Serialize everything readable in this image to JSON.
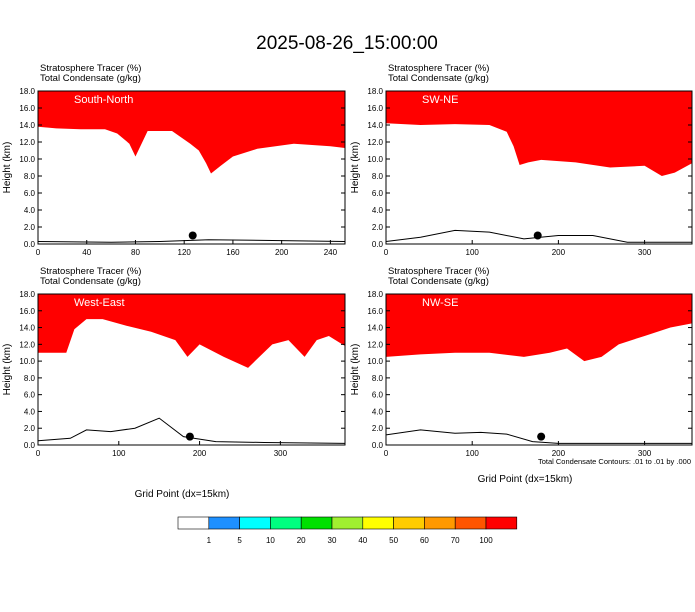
{
  "figure": {
    "title": "2025-08-26_15:00:00",
    "footnote": "Total Condensate Contours: .01 to .01 by .000"
  },
  "chart_data": [
    {
      "type": "heatmap",
      "title": "South-North",
      "left_label": "Stratosphere Tracer   (%)",
      "left_label2": "Total Condensate   (g/kg)",
      "xlabel": "",
      "ylabel": "Height (km)",
      "xlim": [
        0,
        252
      ],
      "ylim": [
        0,
        18
      ],
      "xticks": [
        0,
        40,
        80,
        120,
        160,
        200,
        240
      ],
      "yticks": [
        0,
        2,
        4,
        6,
        8,
        10,
        12,
        14,
        16,
        18
      ],
      "tracer_base_km": [
        [
          0,
          13.8
        ],
        [
          15,
          13.6
        ],
        [
          35,
          13.5
        ],
        [
          55,
          13.5
        ],
        [
          65,
          13.0
        ],
        [
          75,
          11.8
        ],
        [
          80,
          10.3
        ],
        [
          90,
          13.3
        ],
        [
          110,
          13.3
        ],
        [
          125,
          11.8
        ],
        [
          132,
          11.0
        ],
        [
          138,
          9.5
        ],
        [
          142,
          8.3
        ],
        [
          150,
          9.2
        ],
        [
          160,
          10.3
        ],
        [
          180,
          11.2
        ],
        [
          210,
          11.8
        ],
        [
          240,
          11.5
        ],
        [
          252,
          11.3
        ]
      ],
      "terrain_km": [
        [
          0,
          0.3
        ],
        [
          60,
          0.2
        ],
        [
          100,
          0.3
        ],
        [
          140,
          0.5
        ],
        [
          200,
          0.4
        ],
        [
          252,
          0.3
        ]
      ],
      "marker_x": 127
    },
    {
      "type": "heatmap",
      "title": "SW-NE",
      "left_label": "Stratosphere Tracer   (%)",
      "left_label2": "Total Condensate   (g/kg)",
      "xlabel": "",
      "ylabel": "Height (km)",
      "xlim": [
        0,
        355
      ],
      "ylim": [
        0,
        18
      ],
      "xticks": [
        0,
        100,
        200,
        300
      ],
      "yticks": [
        0,
        2,
        4,
        6,
        8,
        10,
        12,
        14,
        16,
        18
      ],
      "tracer_base_km": [
        [
          0,
          14.2
        ],
        [
          40,
          14.0
        ],
        [
          80,
          14.1
        ],
        [
          120,
          14.0
        ],
        [
          140,
          13.2
        ],
        [
          148,
          11.5
        ],
        [
          155,
          9.3
        ],
        [
          165,
          9.6
        ],
        [
          180,
          9.9
        ],
        [
          220,
          9.6
        ],
        [
          260,
          9.0
        ],
        [
          300,
          9.2
        ],
        [
          320,
          8.0
        ],
        [
          335,
          8.4
        ],
        [
          355,
          9.5
        ]
      ],
      "terrain_km": [
        [
          0,
          0.3
        ],
        [
          40,
          0.8
        ],
        [
          80,
          1.6
        ],
        [
          120,
          1.4
        ],
        [
          160,
          0.6
        ],
        [
          200,
          1.0
        ],
        [
          240,
          1.0
        ],
        [
          280,
          0.2
        ],
        [
          355,
          0.2
        ]
      ],
      "marker_x": 176
    },
    {
      "type": "heatmap",
      "title": "West-East",
      "left_label": "Stratosphere Tracer   (%)",
      "left_label2": "Total Condensate   (g/kg)",
      "xlabel": "",
      "ylabel": "Height (km)",
      "xlim": [
        0,
        380
      ],
      "ylim": [
        0,
        18
      ],
      "xticks": [
        0,
        100,
        200,
        300
      ],
      "yticks": [
        0,
        2,
        4,
        6,
        8,
        10,
        12,
        14,
        16,
        18
      ],
      "tracer_base_km": [
        [
          0,
          11.0
        ],
        [
          35,
          11.0
        ],
        [
          45,
          13.8
        ],
        [
          60,
          15.0
        ],
        [
          80,
          15.0
        ],
        [
          110,
          14.2
        ],
        [
          140,
          13.5
        ],
        [
          170,
          12.5
        ],
        [
          185,
          10.5
        ],
        [
          200,
          12.0
        ],
        [
          230,
          10.5
        ],
        [
          260,
          9.2
        ],
        [
          290,
          12.0
        ],
        [
          310,
          12.5
        ],
        [
          330,
          10.5
        ],
        [
          345,
          12.5
        ],
        [
          360,
          13.0
        ],
        [
          380,
          11.8
        ]
      ],
      "terrain_km": [
        [
          0,
          0.5
        ],
        [
          40,
          0.8
        ],
        [
          60,
          1.8
        ],
        [
          90,
          1.6
        ],
        [
          120,
          2.0
        ],
        [
          150,
          3.2
        ],
        [
          180,
          1.0
        ],
        [
          220,
          0.4
        ],
        [
          280,
          0.3
        ],
        [
          380,
          0.2
        ]
      ],
      "marker_x": 188
    },
    {
      "type": "heatmap",
      "title": "NW-SE",
      "left_label": "Stratosphere Tracer   (%)",
      "left_label2": "Total Condensate   (g/kg)",
      "xlabel": "",
      "ylabel": "Height (km)",
      "xlim": [
        0,
        355
      ],
      "ylim": [
        0,
        18
      ],
      "xticks": [
        0,
        100,
        200,
        300
      ],
      "yticks": [
        0,
        2,
        4,
        6,
        8,
        10,
        12,
        14,
        16,
        18
      ],
      "tracer_base_km": [
        [
          0,
          10.5
        ],
        [
          40,
          10.8
        ],
        [
          80,
          11.0
        ],
        [
          120,
          11.0
        ],
        [
          160,
          10.5
        ],
        [
          190,
          11.0
        ],
        [
          210,
          11.5
        ],
        [
          230,
          10.0
        ],
        [
          250,
          10.5
        ],
        [
          270,
          12.0
        ],
        [
          300,
          13.0
        ],
        [
          330,
          14.0
        ],
        [
          355,
          14.5
        ]
      ],
      "terrain_km": [
        [
          0,
          1.2
        ],
        [
          40,
          1.8
        ],
        [
          80,
          1.4
        ],
        [
          110,
          1.5
        ],
        [
          140,
          1.3
        ],
        [
          170,
          0.4
        ],
        [
          200,
          0.2
        ],
        [
          355,
          0.2
        ]
      ],
      "marker_x": 180
    }
  ],
  "xlabel_bottom": "Grid Point (dx=15km)",
  "colorbar": {
    "colors": [
      "#ffffff",
      "#1e90ff",
      "#00ffff",
      "#00ff80",
      "#00e000",
      "#a0f030",
      "#ffff00",
      "#ffcc00",
      "#ff9900",
      "#ff5500",
      "#ff0000"
    ],
    "labels": [
      "1",
      "5",
      "10",
      "20",
      "30",
      "40",
      "50",
      "60",
      "70",
      "100"
    ]
  }
}
